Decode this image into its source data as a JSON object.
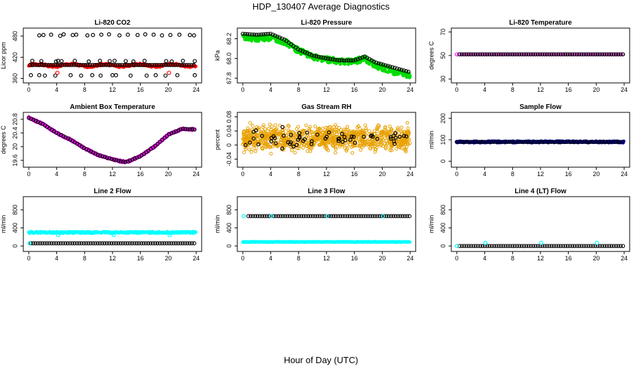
{
  "figure": {
    "title": "HDP_130407  Average Diagnostics",
    "xlabel": "Hour of Day (UTC)"
  },
  "chart_data": [
    {
      "id": "co2",
      "type": "scatter",
      "title": "Li-820 CO2",
      "ylabel": "Licor ppm",
      "xlim": [
        0,
        24
      ],
      "ylim": [
        355,
        495
      ],
      "xticks": [
        0,
        4,
        8,
        12,
        16,
        20,
        24
      ],
      "yticks": [
        360,
        420,
        480
      ],
      "series": [
        {
          "style": "dense",
          "color": "#ff0000",
          "x0": 0,
          "x1": 24,
          "y0": 397,
          "y1": 397,
          "amp": 3,
          "band": 3
        },
        {
          "style": "open",
          "color": "#000000",
          "x0": 0.2,
          "x1": 23.9,
          "y0": 398,
          "y1": 398,
          "amp": 2,
          "band": 1
        },
        {
          "style": "scatter",
          "color": "#000000",
          "x": [
            1.5,
            2.1,
            3.2,
            4.5,
            5.0,
            6.3,
            6.8,
            8.4,
            9.2,
            10.4,
            11.5,
            13.0,
            14.2,
            15.6,
            16.7,
            17.9,
            19.1,
            20.3,
            21.6,
            23.1,
            23.7
          ],
          "y": [
            482,
            483,
            484,
            481,
            485,
            483,
            484,
            482,
            483,
            484,
            485,
            482,
            484,
            483,
            485,
            484,
            482,
            483,
            484,
            483,
            482
          ]
        },
        {
          "style": "scatter",
          "color": "#000000",
          "x": [
            0.5,
            1.8,
            3.9,
            4.2,
            4.7,
            6.6,
            8.6,
            10.2,
            11.6,
            12.3,
            13.9,
            15.0,
            16.6,
            19.7,
            20.5,
            22.1,
            23.8
          ],
          "y": [
            410,
            409,
            408,
            410,
            409,
            410,
            408,
            410,
            409,
            410,
            409,
            408,
            410,
            409,
            408,
            410,
            409
          ]
        },
        {
          "style": "scatter",
          "color": "#000000",
          "x": [
            0.3,
            1.5,
            2.3,
            3.8,
            6.0,
            7.5,
            9.1,
            10.3,
            12.0,
            12.5,
            14.6,
            16.9,
            18.2,
            19.6,
            21.3,
            23.8
          ],
          "y": [
            369,
            369,
            368,
            368,
            369,
            368,
            369,
            368,
            369,
            369,
            368,
            368,
            369,
            368,
            369,
            369
          ]
        },
        {
          "style": "scatter",
          "color": "#ff0000",
          "x": [
            4.1,
            20.1
          ],
          "y": [
            376,
            376
          ]
        }
      ]
    },
    {
      "id": "pressure",
      "type": "scatter",
      "title": "Li-820 Pressure",
      "ylabel": "kPa",
      "xlim": [
        0,
        24
      ],
      "ylim": [
        67.78,
        68.28
      ],
      "xticks": [
        0,
        4,
        8,
        12,
        16,
        20,
        24
      ],
      "yticks": [
        67.8,
        68.0,
        68.2
      ],
      "series": [
        {
          "style": "band",
          "color": "#00dd00",
          "xs": [
            0,
            2,
            4,
            6,
            8,
            10,
            12,
            14,
            16,
            17.5,
            19,
            21,
            24
          ],
          "ys": [
            68.21,
            68.2,
            68.21,
            68.17,
            68.08,
            68.02,
            67.99,
            67.97,
            67.97,
            68.0,
            67.93,
            67.88,
            67.82
          ],
          "band": 0.03
        },
        {
          "style": "line",
          "color": "#000000",
          "xs": [
            0,
            2,
            4,
            6,
            8,
            10,
            12,
            14,
            16,
            17.5,
            19,
            21,
            24
          ],
          "ys": [
            68.25,
            68.24,
            68.25,
            68.19,
            68.09,
            68.03,
            68.0,
            67.98,
            67.98,
            68.02,
            67.96,
            67.92,
            67.86
          ]
        }
      ]
    },
    {
      "id": "licortemp",
      "type": "scatter",
      "title": "Li-820 Temperature",
      "ylabel": "degrees C",
      "xlim": [
        0,
        24
      ],
      "ylim": [
        29,
        71
      ],
      "xticks": [
        0,
        4,
        8,
        12,
        16,
        20,
        24
      ],
      "yticks": [
        30,
        50,
        70
      ],
      "series": [
        {
          "style": "open",
          "color": "#ff00ff",
          "x0": 0,
          "x1": 24,
          "y0": 51,
          "y1": 51,
          "amp": 0,
          "band": 0
        },
        {
          "style": "open",
          "color": "#000000",
          "x0": 0.4,
          "x1": 24,
          "y0": 51,
          "y1": 51,
          "amp": 0,
          "band": 0
        }
      ]
    },
    {
      "id": "ambient",
      "type": "scatter",
      "title": "Ambient Box Temperature",
      "ylabel": "degrees C",
      "xlim": [
        0,
        24
      ],
      "ylim": [
        19.48,
        20.92
      ],
      "xticks": [
        0,
        4,
        8,
        12,
        16,
        20,
        24
      ],
      "yticks": [
        19.6,
        20.0,
        20.4,
        20.8
      ],
      "series": [
        {
          "style": "band",
          "color": "#ff00ff",
          "xs": [
            0,
            2,
            4,
            6,
            8,
            10,
            12,
            13,
            14,
            16,
            18,
            20,
            22,
            23.8
          ],
          "ys": [
            20.84,
            20.66,
            20.4,
            20.2,
            19.95,
            19.75,
            19.63,
            19.58,
            19.55,
            19.72,
            20.0,
            20.35,
            20.52,
            20.5
          ],
          "band": 0.03
        },
        {
          "style": "line",
          "color": "#000000",
          "xs": [
            0,
            2,
            4,
            6,
            8,
            10,
            12,
            13,
            14,
            16,
            18,
            20,
            22,
            23.8
          ],
          "ys": [
            20.84,
            20.66,
            20.4,
            20.2,
            19.95,
            19.75,
            19.63,
            19.58,
            19.55,
            19.72,
            20.0,
            20.35,
            20.52,
            20.5
          ]
        }
      ]
    },
    {
      "id": "rh",
      "type": "scatter",
      "title": "Gas Stream RH",
      "ylabel": "percent",
      "xlim": [
        0,
        24
      ],
      "ylim": [
        -0.055,
        0.085
      ],
      "xticks": [
        0,
        4,
        8,
        12,
        16,
        20,
        24
      ],
      "yticks": [
        -0.04,
        0.0,
        0.04,
        0.08
      ],
      "series": [
        {
          "style": "noise",
          "color": "#e8a000",
          "x0": 0,
          "x1": 24,
          "center": 0.02,
          "spread": 0.035,
          "n": 900,
          "seed": 7
        },
        {
          "style": "noise",
          "color": "#000000",
          "x0": 0.3,
          "x1": 24,
          "center": 0.02,
          "spread": 0.025,
          "n": 60,
          "seed": 3
        }
      ]
    },
    {
      "id": "sample",
      "type": "scatter",
      "title": "Sample Flow",
      "ylabel": "ml/min",
      "xlim": [
        0,
        24
      ],
      "ylim": [
        -15,
        215
      ],
      "xticks": [
        0,
        4,
        8,
        12,
        16,
        20,
        24
      ],
      "yticks": [
        0,
        100,
        200
      ],
      "series": [
        {
          "style": "dense",
          "color": "#0000cc",
          "x0": 0,
          "x1": 24,
          "y0": 90,
          "y1": 90,
          "amp": 0,
          "band": 4
        },
        {
          "style": "open",
          "color": "#000000",
          "x0": 0,
          "x1": 24,
          "y0": 90,
          "y1": 90,
          "amp": 0,
          "band": 0
        }
      ]
    },
    {
      "id": "line2",
      "type": "scatter",
      "title": "Line 2 Flow",
      "ylabel": "ml/min",
      "xlim": [
        0,
        24
      ],
      "ylim": [
        -60,
        1030
      ],
      "xticks": [
        0,
        4,
        8,
        12,
        16,
        20,
        24
      ],
      "yticks": [
        0,
        400,
        800
      ],
      "series": [
        {
          "style": "dense",
          "color": "#00ffff",
          "x0": 0,
          "x1": 24,
          "y0": 300,
          "y1": 300,
          "amp": 0,
          "band": 18
        },
        {
          "style": "scatter",
          "color": "#00ffff",
          "x": [
            4.2,
            12.2,
            20.2
          ],
          "y": [
            240,
            240,
            240
          ]
        },
        {
          "style": "open",
          "color": "#000000",
          "x0": 0.3,
          "x1": 24,
          "y0": 60,
          "y1": 60,
          "amp": 0,
          "band": 0
        },
        {
          "style": "scatter",
          "color": "#00ffff",
          "x": [
            0.1
          ],
          "y": [
            60
          ]
        }
      ]
    },
    {
      "id": "line3",
      "type": "scatter",
      "title": "Line 3 Flow",
      "ylabel": "ml/min",
      "xlim": [
        0,
        24
      ],
      "ylim": [
        -60,
        1030
      ],
      "xticks": [
        0,
        4,
        8,
        12,
        16,
        20,
        24
      ],
      "yticks": [
        0,
        400,
        800
      ],
      "series": [
        {
          "style": "open",
          "color": "#000000",
          "x0": 0.8,
          "x1": 24,
          "y0": 660,
          "y1": 660,
          "amp": 0,
          "band": 0
        },
        {
          "style": "scatter",
          "color": "#00ffff",
          "x": [
            0.1,
            4.1,
            12.1,
            20.1
          ],
          "y": [
            660,
            660,
            660,
            660
          ]
        },
        {
          "style": "dense",
          "color": "#00ffff",
          "x0": 0,
          "x1": 24,
          "y0": 90,
          "y1": 90,
          "amp": 0,
          "band": 6
        }
      ]
    },
    {
      "id": "line4",
      "type": "scatter",
      "title": "Line 4 (LT) Flow",
      "ylabel": "ml/min",
      "xlim": [
        0,
        24
      ],
      "ylim": [
        -60,
        1030
      ],
      "xticks": [
        0,
        4,
        8,
        12,
        16,
        20,
        24
      ],
      "yticks": [
        0,
        400,
        800
      ],
      "series": [
        {
          "style": "open",
          "color": "#000000",
          "x0": 0.4,
          "x1": 24,
          "y0": 0,
          "y1": 0,
          "amp": 0,
          "band": 0
        },
        {
          "style": "scatter",
          "color": "#00ffff",
          "x": [
            0.0,
            4.1,
            12.1,
            20.1
          ],
          "y": [
            0,
            70,
            70,
            70
          ]
        }
      ]
    }
  ]
}
